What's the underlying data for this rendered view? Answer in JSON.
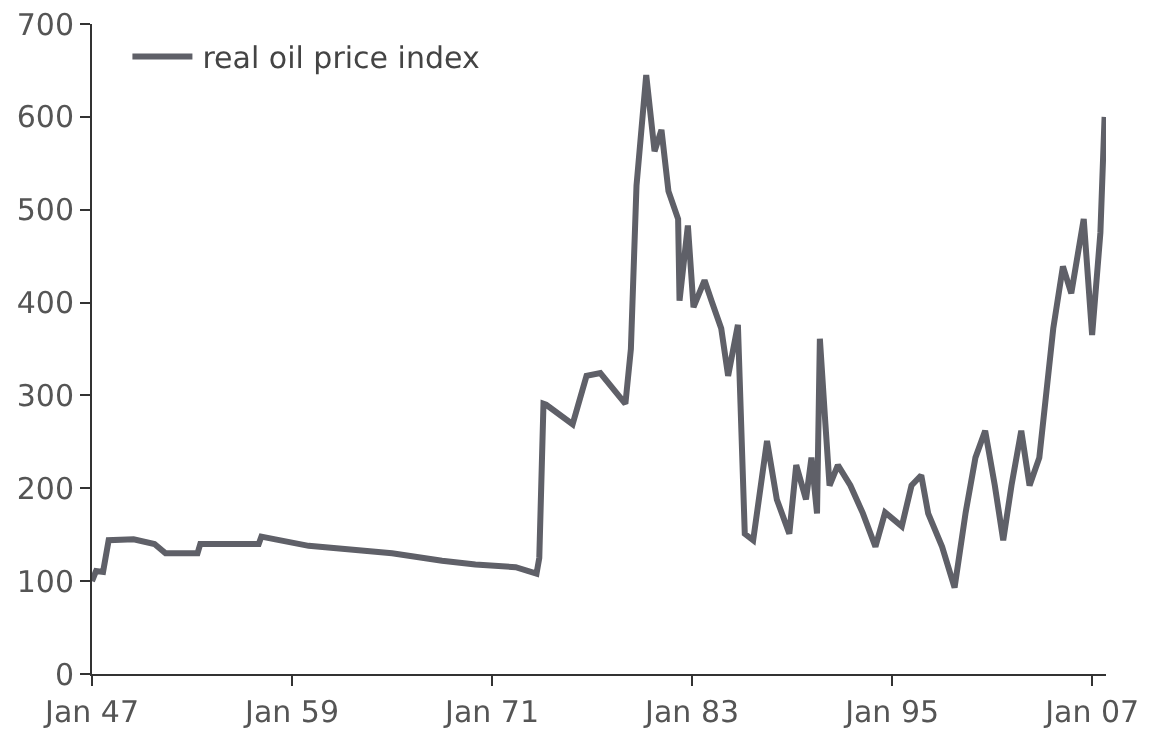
{
  "chart_data": {
    "type": "line",
    "x": [
      "1947-01",
      "1947-04",
      "1947-09",
      "1948-01",
      "1949-07",
      "1950-10",
      "1951-06",
      "1953-05",
      "1953-07",
      "1957-01",
      "1957-03",
      "1958-01",
      "1960-01",
      "1962-01",
      "1965-01",
      "1968-01",
      "1970-01",
      "1972-06",
      "1973-09",
      "1973-11",
      "1974-02",
      "1974-04",
      "1975-11",
      "1976-09",
      "1977-07",
      "1979-01",
      "1979-05",
      "1979-09",
      "1980-04",
      "1980-10",
      "1981-03",
      "1981-08",
      "1982-03",
      "1982-04",
      "1982-10",
      "1983-02",
      "1983-10",
      "1984-03",
      "1984-10",
      "1985-03",
      "1985-10",
      "1986-03",
      "1986-09",
      "1987-07",
      "1988-02",
      "1988-11",
      "1989-04",
      "1989-11",
      "1990-03",
      "1990-07",
      "1990-09",
      "1991-01",
      "1991-04",
      "1991-10",
      "1992-07",
      "1993-04",
      "1994-01",
      "1994-08",
      "1995-08",
      "1996-03",
      "1996-10",
      "1997-03",
      "1998-01",
      "1998-10",
      "1999-06",
      "2000-01",
      "2000-08",
      "2001-03",
      "2001-09",
      "2002-03",
      "2002-10",
      "2003-04",
      "2003-11",
      "2004-09",
      "2005-04",
      "2005-10",
      "2006-07",
      "2007-01",
      "2007-07",
      "2007-10"
    ],
    "series": [
      {
        "name": "real oil price index",
        "color": "#5f6068",
        "values": [
          100,
          111,
          110,
          144,
          145,
          140,
          130,
          130,
          140,
          140,
          148,
          145,
          138,
          135,
          130,
          122,
          118,
          115,
          108,
          125,
          291,
          290,
          269,
          321,
          324,
          291,
          350,
          526,
          645,
          563,
          586,
          520,
          490,
          402,
          483,
          395,
          424,
          402,
          372,
          321,
          376,
          151,
          144,
          251,
          188,
          151,
          225,
          188,
          233,
          173,
          361,
          269,
          203,
          225,
          203,
          173,
          137,
          174,
          159,
          203,
          214,
          173,
          137,
          93,
          174,
          233,
          262,
          203,
          144,
          203,
          262,
          203,
          233,
          372,
          439,
          410,
          490,
          365,
          475,
          600
        ]
      }
    ],
    "xlim": [
      "1947-01",
      "2007-11"
    ],
    "xticks": [
      {
        "value": "1947-01",
        "label": "Jan 47"
      },
      {
        "value": "1959-01",
        "label": "Jan 59"
      },
      {
        "value": "1971-01",
        "label": "Jan 71"
      },
      {
        "value": "1983-01",
        "label": "Jan 83"
      },
      {
        "value": "1995-01",
        "label": "Jan 95"
      },
      {
        "value": "2007-01",
        "label": "Jan 07"
      }
    ],
    "ylim": [
      0,
      700
    ],
    "yticks": [
      0,
      100,
      200,
      300,
      400,
      500,
      600,
      700
    ],
    "grid": false,
    "legend": "top left",
    "line_style": "solid",
    "marker": "none"
  }
}
